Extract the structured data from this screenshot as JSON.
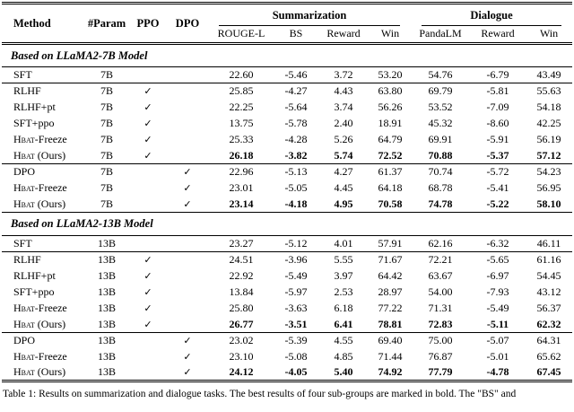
{
  "header": {
    "method": "Method",
    "param": "#Param",
    "ppo": "PPO",
    "dpo": "DPO",
    "groups": [
      {
        "label": "Summarization",
        "cols": [
          "ROUGE-L",
          "BS",
          "Reward",
          "Win"
        ]
      },
      {
        "label": "Dialogue",
        "cols": [
          "PandaLM",
          "Reward",
          "Win"
        ]
      }
    ]
  },
  "glyphs": {
    "check": "✓"
  },
  "rows": [
    {
      "type": "section",
      "title": "Based on LLaMA2-7B Model"
    },
    {
      "type": "data",
      "sc": "",
      "method": "SFT",
      "param": "7B",
      "ppo": false,
      "dpo": false,
      "bold": false,
      "sep": true,
      "values": [
        "22.60",
        "-5.46",
        "3.72",
        "53.20",
        "54.76",
        "-6.79",
        "43.49"
      ]
    },
    {
      "type": "data",
      "sc": "",
      "method": "RLHF",
      "param": "7B",
      "ppo": true,
      "dpo": false,
      "bold": false,
      "sep": false,
      "values": [
        "25.85",
        "-4.27",
        "4.43",
        "63.80",
        "69.79",
        "-5.81",
        "55.63"
      ]
    },
    {
      "type": "data",
      "sc": "",
      "method": "RLHF+pt",
      "param": "7B",
      "ppo": true,
      "dpo": false,
      "bold": false,
      "sep": false,
      "values": [
        "22.25",
        "-5.64",
        "3.74",
        "56.26",
        "53.52",
        "-7.09",
        "54.18"
      ]
    },
    {
      "type": "data",
      "sc": "",
      "method": "SFT+ppo",
      "param": "7B",
      "ppo": true,
      "dpo": false,
      "bold": false,
      "sep": false,
      "values": [
        "13.75",
        "-5.78",
        "2.40",
        "18.91",
        "45.32",
        "-8.60",
        "42.25"
      ]
    },
    {
      "type": "data",
      "sc": "Hbat",
      "method": "-Freeze",
      "param": "7B",
      "ppo": true,
      "dpo": false,
      "bold": false,
      "sep": false,
      "values": [
        "25.33",
        "-4.28",
        "5.26",
        "64.79",
        "69.91",
        "-5.91",
        "56.19"
      ]
    },
    {
      "type": "data",
      "sc": "Hbat",
      "method": " (Ours)",
      "param": "7B",
      "ppo": true,
      "dpo": false,
      "bold": true,
      "sep": true,
      "values": [
        "26.18",
        "-3.82",
        "5.74",
        "72.52",
        "70.88",
        "-5.37",
        "57.12"
      ]
    },
    {
      "type": "data",
      "sc": "",
      "method": "DPO",
      "param": "7B",
      "ppo": false,
      "dpo": true,
      "bold": false,
      "sep": false,
      "values": [
        "22.96",
        "-5.13",
        "4.27",
        "61.37",
        "70.74",
        "-5.72",
        "54.23"
      ]
    },
    {
      "type": "data",
      "sc": "Hbat",
      "method": "-Freeze",
      "param": "7B",
      "ppo": false,
      "dpo": true,
      "bold": false,
      "sep": false,
      "values": [
        "23.01",
        "-5.05",
        "4.45",
        "64.18",
        "68.78",
        "-5.41",
        "56.95"
      ]
    },
    {
      "type": "data",
      "sc": "Hbat",
      "method": " (Ours)",
      "param": "7B",
      "ppo": false,
      "dpo": true,
      "bold": true,
      "sep": true,
      "values": [
        "23.14",
        "-4.18",
        "4.95",
        "70.58",
        "74.78",
        "-5.22",
        "58.10"
      ]
    },
    {
      "type": "section",
      "title": "Based on LLaMA2-13B Model"
    },
    {
      "type": "data",
      "sc": "",
      "method": "SFT",
      "param": "13B",
      "ppo": false,
      "dpo": false,
      "bold": false,
      "sep": true,
      "values": [
        "23.27",
        "-5.12",
        "4.01",
        "57.91",
        "62.16",
        "-6.32",
        "46.11"
      ]
    },
    {
      "type": "data",
      "sc": "",
      "method": "RLHF",
      "param": "13B",
      "ppo": true,
      "dpo": false,
      "bold": false,
      "sep": false,
      "values": [
        "24.51",
        "-3.96",
        "5.55",
        "71.67",
        "72.21",
        "-5.65",
        "61.16"
      ]
    },
    {
      "type": "data",
      "sc": "",
      "method": "RLHF+pt",
      "param": "13B",
      "ppo": true,
      "dpo": false,
      "bold": false,
      "sep": false,
      "values": [
        "22.92",
        "-5.49",
        "3.97",
        "64.42",
        "63.67",
        "-6.97",
        "54.45"
      ]
    },
    {
      "type": "data",
      "sc": "",
      "method": "SFT+ppo",
      "param": "13B",
      "ppo": true,
      "dpo": false,
      "bold": false,
      "sep": false,
      "values": [
        "13.84",
        "-5.97",
        "2.53",
        "28.97",
        "54.00",
        "-7.93",
        "43.12"
      ]
    },
    {
      "type": "data",
      "sc": "Hbat",
      "method": "-Freeze",
      "param": "13B",
      "ppo": true,
      "dpo": false,
      "bold": false,
      "sep": false,
      "values": [
        "25.80",
        "-3.63",
        "6.18",
        "77.22",
        "71.31",
        "-5.49",
        "56.37"
      ]
    },
    {
      "type": "data",
      "sc": "Hbat",
      "method": " (Ours)",
      "param": "13B",
      "ppo": true,
      "dpo": false,
      "bold": true,
      "sep": true,
      "values": [
        "26.77",
        "-3.51",
        "6.41",
        "78.81",
        "72.83",
        "-5.11",
        "62.32"
      ]
    },
    {
      "type": "data",
      "sc": "",
      "method": "DPO",
      "param": "13B",
      "ppo": false,
      "dpo": true,
      "bold": false,
      "sep": false,
      "values": [
        "23.02",
        "-5.39",
        "4.55",
        "69.40",
        "75.00",
        "-5.07",
        "64.31"
      ]
    },
    {
      "type": "data",
      "sc": "Hbat",
      "method": "-Freeze",
      "param": "13B",
      "ppo": false,
      "dpo": true,
      "bold": false,
      "sep": false,
      "values": [
        "23.10",
        "-5.08",
        "4.85",
        "71.44",
        "76.87",
        "-5.01",
        "65.62"
      ]
    },
    {
      "type": "data",
      "sc": "Hbat",
      "method": " (Ours)",
      "param": "13B",
      "ppo": false,
      "dpo": true,
      "bold": true,
      "sep": false,
      "values": [
        "24.12",
        "-4.05",
        "5.40",
        "74.92",
        "77.79",
        "-4.78",
        "67.45"
      ]
    }
  ],
  "caption": "Table 1: Results on summarization and dialogue tasks. The best results of four sub-groups are marked in bold. The \"BS\" and"
}
